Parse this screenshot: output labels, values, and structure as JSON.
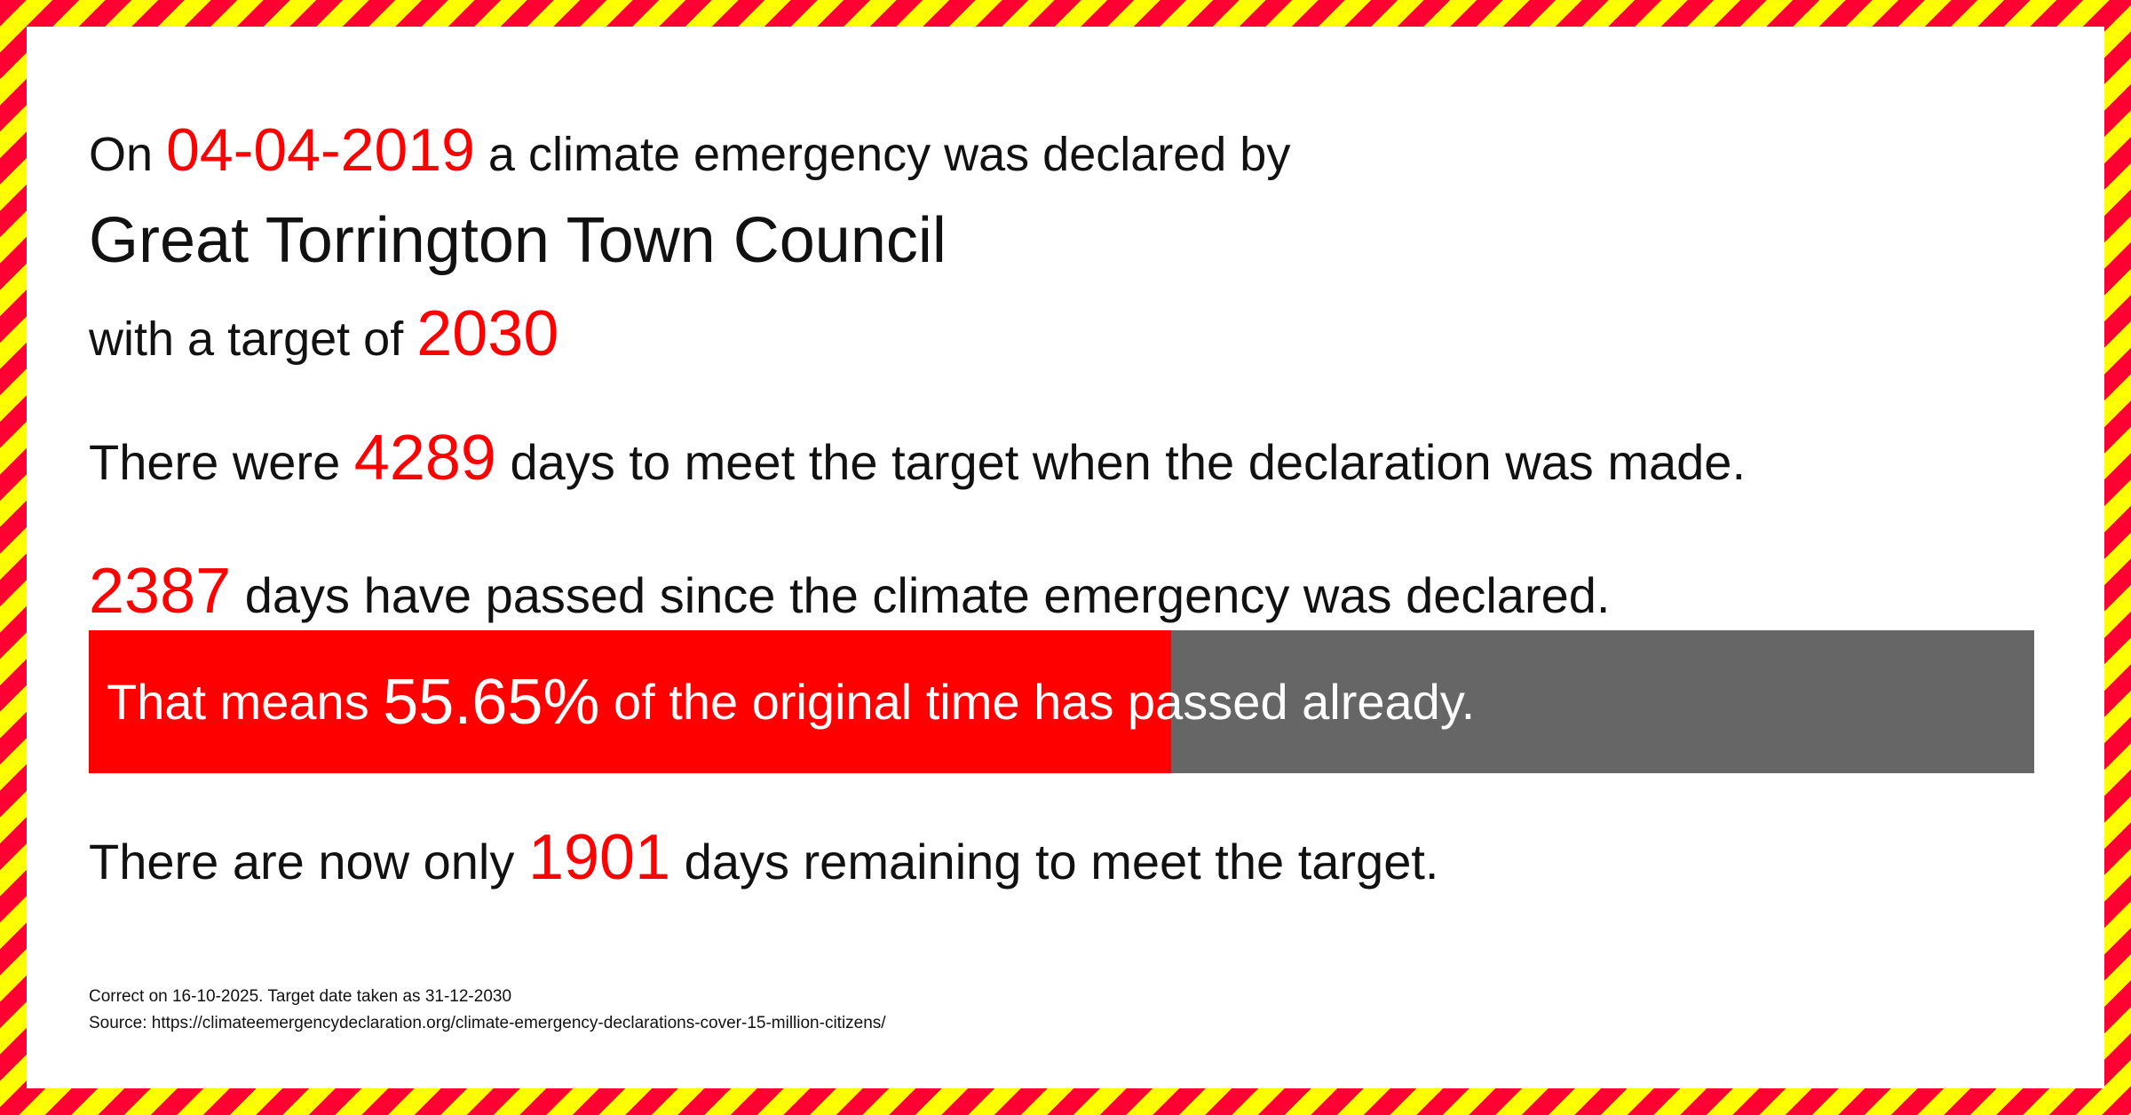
{
  "colors": {
    "accent": "#ff0000",
    "bar_remaining": "#666666",
    "stripe_red": "#ff0033",
    "stripe_yellow": "#ffff00"
  },
  "declaration": {
    "prefix": "On",
    "date": "04-04-2019",
    "suffix": "a climate emergency was declared by",
    "organisation": "Great Torrington Town Council",
    "target_prefix": "with a target of",
    "target_year": "2030"
  },
  "stats": {
    "days_total_prefix": "There were",
    "days_total": "4289",
    "days_total_suffix": "days to meet the target when the declaration was made.",
    "days_passed": "2387",
    "days_passed_suffix": "days have passed since the climate emergency was declared.",
    "percent_prefix": "That means",
    "percent": "55.65%",
    "percent_value": 55.65,
    "percent_suffix": "of the original time has passed already.",
    "remaining_prefix": "There are now only",
    "days_remaining": "1901",
    "remaining_suffix": "days remaining to meet the target."
  },
  "footer": {
    "correct": "Correct on 16-10-2025. Target date taken as 31-12-2030",
    "source": "Source: https://climateemergencydeclaration.org/climate-emergency-declarations-cover-15-million-citizens/"
  }
}
